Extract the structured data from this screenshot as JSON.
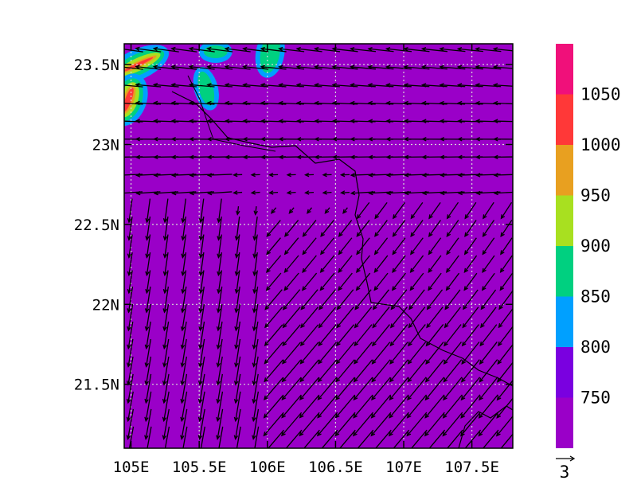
{
  "chart_data": {
    "type": "map-contour-vector",
    "title": "",
    "x_axis": {
      "range": [
        104.95,
        107.8
      ],
      "ticks": [
        105,
        105.5,
        106,
        106.5,
        107,
        107.5
      ],
      "tick_labels": [
        "105E",
        "105.5E",
        "106E",
        "106.5E",
        "107E",
        "107.5E"
      ]
    },
    "y_axis": {
      "range": [
        21.1,
        23.63
      ],
      "ticks": [
        21.5,
        22,
        22.5,
        23,
        23.5
      ],
      "tick_labels": [
        "21.5N",
        "22N",
        "22.5N",
        "23N",
        "23.5N"
      ]
    },
    "grid": "dotted",
    "colorbar": {
      "placement": "right",
      "levels": [
        750,
        800,
        850,
        900,
        950,
        1000,
        1050
      ],
      "labels": [
        "750",
        "800",
        "850",
        "900",
        "950",
        "1000",
        "1050"
      ],
      "colors": [
        "#9a00c8",
        "#7a00e0",
        "#00a0ff",
        "#00d080",
        "#a8e020",
        "#e8a020",
        "#ff3838",
        "#f0107a"
      ]
    },
    "reference_vector": {
      "magnitude": 3,
      "label": "3"
    },
    "highlight_regions": [
      {
        "lon": 105.05,
        "lat": 23.5,
        "level_index": 6
      },
      {
        "lon": 104.98,
        "lat": 23.28,
        "level_index": 6
      },
      {
        "lon": 105.55,
        "lat": 23.35,
        "level_index": 2
      },
      {
        "lon": 105.62,
        "lat": 23.58,
        "level_index": 3
      },
      {
        "lon": 106.02,
        "lat": 23.57,
        "level_index": 2
      }
    ]
  }
}
